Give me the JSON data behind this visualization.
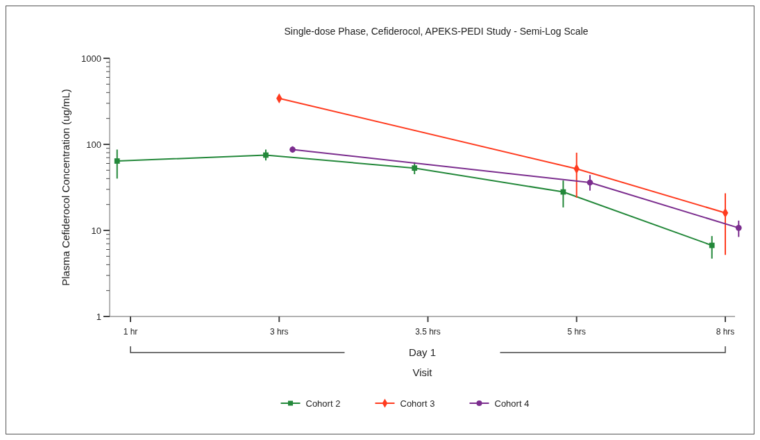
{
  "chart_data": {
    "type": "line",
    "title": "Single-dose Phase, Cefiderocol, APEKS-PEDI Study - Semi-Log Scale",
    "xlabel": "Visit",
    "ylabel": "Plasma Cefiderocol Concentration (ug/mL)",
    "annotations": [
      "Day 1"
    ],
    "categories": [
      "1 hr",
      "3 hrs",
      "3.5 hrs",
      "5 hrs",
      "8 hrs"
    ],
    "series": [
      {
        "name": "Cohort 2",
        "color": "#23883a",
        "marker": "square",
        "values": [
          64,
          75,
          53,
          28,
          6.7
        ],
        "errors": [
          [
            40,
            87
          ],
          [
            65,
            87
          ],
          [
            45,
            62
          ],
          [
            18.5,
            38
          ],
          [
            4.7,
            8.6
          ]
        ]
      },
      {
        "name": "Cohort 3",
        "color": "#ff3b1f",
        "marker": "diamond",
        "values": [
          null,
          342,
          null,
          52,
          16
        ],
        "errors": [
          null,
          null,
          null,
          [
            24,
            80
          ],
          [
            5.2,
            27
          ]
        ]
      },
      {
        "name": "Cohort 4",
        "color": "#7b2d8e",
        "marker": "circle",
        "values": [
          null,
          87,
          null,
          36,
          10.7
        ],
        "errors": [
          null,
          [
            80,
            95
          ],
          null,
          [
            29,
            44
          ],
          [
            8.4,
            13
          ]
        ]
      }
    ],
    "log": "y",
    "ylim": [
      1,
      1000
    ],
    "yticks": [
      1,
      {
        "value": 2,
        "label": null
      },
      {
        "value": 3,
        "label": null
      },
      {
        "value": 4,
        "label": null
      },
      {
        "value": 5,
        "label": null
      },
      {
        "value": 6,
        "label": null
      },
      {
        "value": 7,
        "label": null
      },
      {
        "value": 8,
        "label": null
      },
      {
        "value": 9,
        "label": null
      },
      10,
      {
        "value": 20,
        "label": null
      },
      {
        "value": 30,
        "label": null
      },
      {
        "value": 40,
        "label": null
      },
      {
        "value": 50,
        "label": null
      },
      {
        "value": 60,
        "label": null
      },
      {
        "value": 70,
        "label": null
      },
      {
        "value": 80,
        "label": null
      },
      {
        "value": 90,
        "label": null
      },
      100,
      {
        "value": 200,
        "label": null
      },
      {
        "value": 300,
        "label": null
      },
      {
        "value": 400,
        "label": null
      },
      {
        "value": 500,
        "label": null
      },
      {
        "value": 600,
        "label": null
      },
      {
        "value": 700,
        "label": null
      },
      {
        "value": 800,
        "label": null
      },
      {
        "value": 900,
        "label": null
      },
      1000
    ],
    "grid": false,
    "legend": "bottom",
    "line_style": "solid"
  }
}
